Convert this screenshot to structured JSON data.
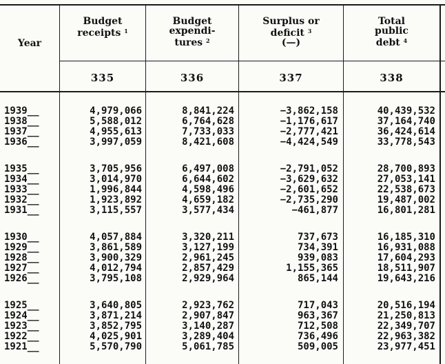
{
  "headers": {
    "year": "Year",
    "receipts": [
      "Budget",
      "receipts"
    ],
    "receipts_note": "1",
    "expenditures": [
      "Budget",
      "expendi-",
      "tures"
    ],
    "expenditures_note": "2",
    "surplus": [
      "Surplus or",
      "deficit",
      "(—)"
    ],
    "surplus_note": "3",
    "debt": [
      "Total",
      "public",
      "debt"
    ],
    "debt_note": "4"
  },
  "column_numbers": [
    "335",
    "336",
    "337",
    "338"
  ],
  "groups": [
    {
      "rows": [
        {
          "year": "1939__",
          "receipts": "4,979,066",
          "expenditures": "8,841,224",
          "surplus": "−3,862,158",
          "debt": "40,439,532"
        },
        {
          "year": "1938__",
          "receipts": "5,588,012",
          "expenditures": "6,764,628",
          "surplus": "−1,176,617",
          "debt": "37,164,740"
        },
        {
          "year": "1937__",
          "receipts": "4,955,613",
          "expenditures": "7,733,033",
          "surplus": "−2,777,421",
          "debt": "36,424,614"
        },
        {
          "year": "1936__",
          "receipts": "3,997,059",
          "expenditures": "8,421,608",
          "surplus": "−4,424,549",
          "debt": "33,778,543"
        }
      ]
    },
    {
      "rows": [
        {
          "year": "1935__",
          "receipts": "3,705,956",
          "expenditures": "6,497,008",
          "surplus": "−2,791,052",
          "debt": "28,700,893"
        },
        {
          "year": "1934__",
          "receipts": "3,014,970",
          "expenditures": "6,644,602",
          "surplus": "−3,629,632",
          "debt": "27,053,141"
        },
        {
          "year": "1933__",
          "receipts": "1,996,844",
          "expenditures": "4,598,496",
          "surplus": "−2,601,652",
          "debt": "22,538,673"
        },
        {
          "year": "1932__",
          "receipts": "1,923,892",
          "expenditures": "4,659,182",
          "surplus": "−2,735,290",
          "debt": "19,487,002"
        },
        {
          "year": "1931__",
          "receipts": "3,115,557",
          "expenditures": "3,577,434",
          "surplus": "−461,877",
          "debt": "16,801,281"
        }
      ]
    },
    {
      "rows": [
        {
          "year": "1930__",
          "receipts": "4,057,884",
          "expenditures": "3,320,211",
          "surplus": "737,673",
          "debt": "16,185,310"
        },
        {
          "year": "1929__",
          "receipts": "3,861,589",
          "expenditures": "3,127,199",
          "surplus": "734,391",
          "debt": "16,931,088"
        },
        {
          "year": "1928__",
          "receipts": "3,900,329",
          "expenditures": "2,961,245",
          "surplus": "939,083",
          "debt": "17,604,293"
        },
        {
          "year": "1927__",
          "receipts": "4,012,794",
          "expenditures": "2,857,429",
          "surplus": "1,155,365",
          "debt": "18,511,907"
        },
        {
          "year": "1926__",
          "receipts": "3,795,108",
          "expenditures": "2,929,964",
          "surplus": "865,144",
          "debt": "19,643,216"
        }
      ]
    },
    {
      "rows": [
        {
          "year": "1925__",
          "receipts": "3,640,805",
          "expenditures": "2,923,762",
          "surplus": "717,043",
          "debt": "20,516,194"
        },
        {
          "year": "1924__",
          "receipts": "3,871,214",
          "expenditures": "2,907,847",
          "surplus": "963,367",
          "debt": "21,250,813"
        },
        {
          "year": "1923__",
          "receipts": "3,852,795",
          "expenditures": "3,140,287",
          "surplus": "712,508",
          "debt": "22,349,707"
        },
        {
          "year": "1922__",
          "receipts": "4,025,901",
          "expenditures": "3,289,404",
          "surplus": "736,496",
          "debt": "22,963,382"
        },
        {
          "year": "1921__",
          "receipts": "5,570,790",
          "expenditures": "5,061,785",
          "surplus": "509,005",
          "debt": "23,977,451"
        }
      ]
    }
  ]
}
